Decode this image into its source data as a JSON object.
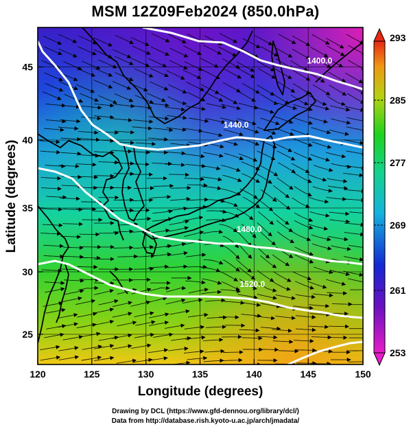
{
  "title": "MSM 12Z09Feb2024 (850.0hPa)",
  "xlabel": "Longitude (degrees)",
  "ylabel": "Latitude  (degrees)",
  "x_ticks": [
    "120",
    "125",
    "130",
    "135",
    "140",
    "145",
    "150"
  ],
  "y_ticks": [
    "25",
    "30",
    "35",
    "40",
    "45"
  ],
  "xlim": [
    120,
    150
  ],
  "ylim": [
    22.4,
    47.6
  ],
  "colorbar": {
    "labels": [
      "293",
      "285",
      "277",
      "269",
      "261",
      "253"
    ],
    "range": [
      253,
      293
    ],
    "units_visible": false
  },
  "contours": [
    {
      "label": "1400.0",
      "lon": 146,
      "lat": 44.9
    },
    {
      "label": "1440.0",
      "lon": 138.3,
      "lat": 40.1
    },
    {
      "label": "1480.0",
      "lon": 139.5,
      "lat": 32.3
    },
    {
      "label": "1520.0",
      "lon": 139.8,
      "lat": 28.2
    }
  ],
  "credits": {
    "line1": "Drawing by DCL (https://www.gfd-dennou.org/library/dcl/)",
    "line2": "Data from http://database.rish.kyoto-u.ac.jp/arch/jmadata/"
  },
  "colors": {
    "cold": "#8a0ac8",
    "cool": "#1e3cd2",
    "mid": "#14c8c8",
    "warm": "#2cd23c",
    "hot": "#f0c814",
    "contour": "#ffffff",
    "coast": "#000000"
  }
}
